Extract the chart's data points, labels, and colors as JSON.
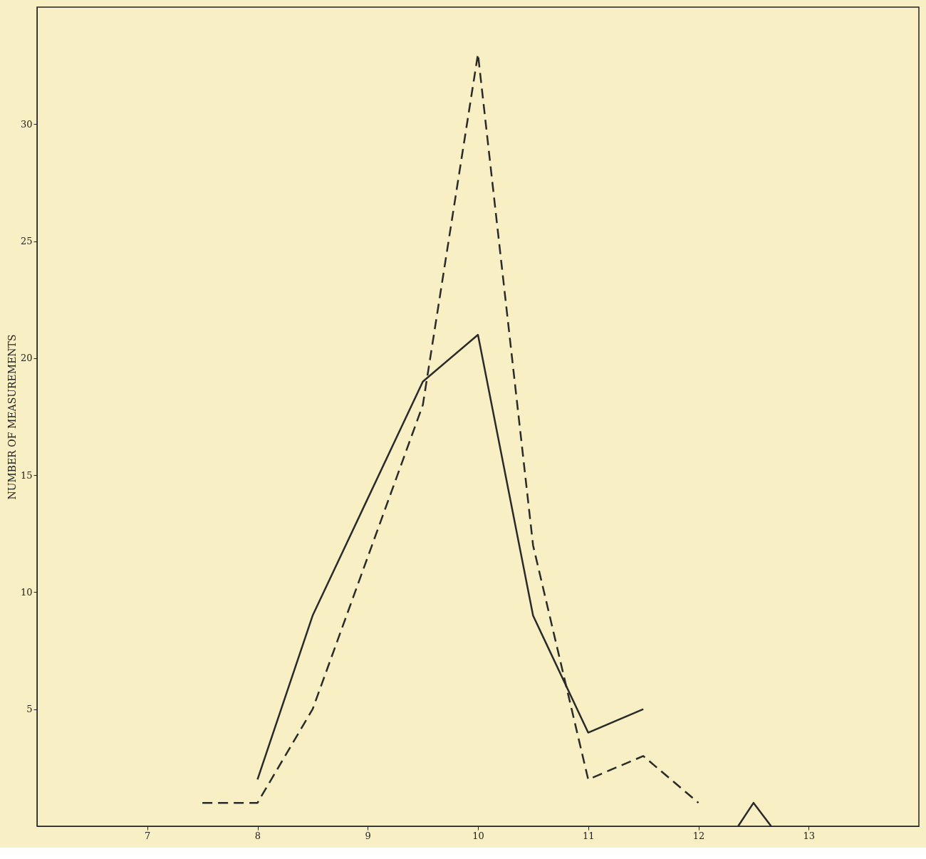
{
  "chart_data": {
    "type": "line",
    "ylabel": "NUMBER OF MEASUREMENTS",
    "xlim": [
      6,
      14
    ],
    "ylim": [
      0,
      35
    ],
    "xticks": [
      7,
      8,
      9,
      10,
      11,
      12,
      13
    ],
    "yticks": [
      5,
      10,
      15,
      20,
      25,
      30
    ],
    "marker": "none",
    "series": [
      {
        "color": "#2a2a2a",
        "line_style": "solid",
        "x": [
          8,
          8.5,
          9.5,
          10,
          10.5,
          11,
          11.5,
          null,
          12.36,
          12.5,
          12.66
        ],
        "values": [
          2,
          9,
          19,
          21,
          9,
          4,
          5,
          null,
          0,
          1,
          0
        ]
      },
      {
        "color": "#2a2a2a",
        "line_style": "dashed",
        "x": [
          7.5,
          8,
          8.5,
          9.5,
          10,
          10.5,
          11,
          11.5,
          12
        ],
        "values": [
          1,
          1,
          5,
          18,
          33,
          12,
          2,
          3,
          1
        ]
      }
    ]
  }
}
